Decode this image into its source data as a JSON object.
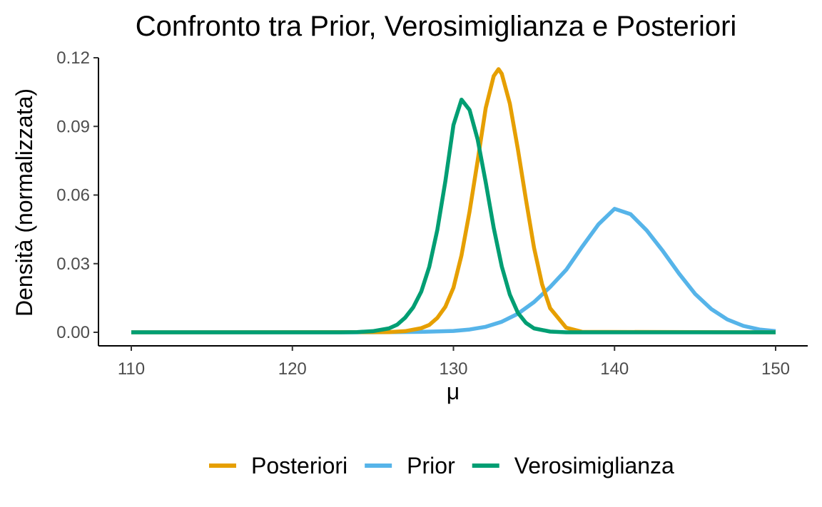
{
  "chart_data": {
    "type": "line",
    "title": "Confronto tra Prior, Verosimiglianza e Posteriori",
    "xlabel": "μ",
    "ylabel": "Densità (normalizzata)",
    "xlim": [
      110,
      150
    ],
    "ylim": [
      -0.006,
      0.12
    ],
    "x_ticks": [
      110,
      120,
      130,
      140,
      150
    ],
    "x_tick_labels": [
      "110",
      "120",
      "130",
      "140",
      "150"
    ],
    "y_ticks": [
      0.0,
      0.03,
      0.06,
      0.09,
      0.12
    ],
    "y_tick_labels": [
      "0.00",
      "0.03",
      "0.06",
      "0.09",
      "0.12"
    ],
    "grid": false,
    "legend_position": "bottom",
    "series": [
      {
        "name": "Posteriori",
        "color": "#E69F00",
        "x": [
          110,
          126,
          127,
          128,
          128.5,
          129,
          129.5,
          130,
          130.5,
          131,
          131.5,
          132,
          132.5,
          132.8,
          133,
          133.5,
          134,
          134.5,
          135,
          135.5,
          136,
          137,
          138,
          150
        ],
        "y": [
          0.0,
          0.0001,
          0.0005,
          0.0018,
          0.0032,
          0.0063,
          0.0112,
          0.0195,
          0.0337,
          0.0528,
          0.075,
          0.098,
          0.112,
          0.115,
          0.113,
          0.1,
          0.08,
          0.058,
          0.037,
          0.021,
          0.0105,
          0.002,
          0.0002,
          0.0
        ]
      },
      {
        "name": "Prior",
        "color": "#56B4E9",
        "x": [
          110,
          125,
          128,
          130,
          131,
          132,
          133,
          134,
          135,
          136,
          137,
          138,
          139,
          140,
          141,
          142,
          143,
          144,
          145,
          146,
          147,
          148,
          149,
          150
        ],
        "y": [
          0.0,
          0.0,
          0.0002,
          0.0006,
          0.0012,
          0.0024,
          0.0046,
          0.0081,
          0.0132,
          0.0198,
          0.0273,
          0.0375,
          0.0472,
          0.054,
          0.0516,
          0.0445,
          0.0355,
          0.0257,
          0.0168,
          0.0102,
          0.0056,
          0.0028,
          0.0012,
          0.0005
        ]
      },
      {
        "name": "Verosimiglianza",
        "color": "#009E73",
        "x": [
          110,
          123,
          124,
          125,
          126,
          126.5,
          127,
          127.5,
          128,
          128.5,
          129,
          129.5,
          130,
          130.5,
          131,
          131.5,
          132,
          132.5,
          133,
          133.5,
          134,
          134.5,
          135,
          136,
          137,
          138,
          150
        ],
        "y": [
          0.0,
          0.0,
          0.0001,
          0.0005,
          0.0017,
          0.0033,
          0.0064,
          0.0109,
          0.0178,
          0.0286,
          0.0448,
          0.0661,
          0.0906,
          0.1017,
          0.0972,
          0.0843,
          0.0656,
          0.0457,
          0.0288,
          0.0165,
          0.0085,
          0.0041,
          0.0017,
          0.0003,
          0.0,
          0.0,
          0.0
        ]
      }
    ]
  }
}
